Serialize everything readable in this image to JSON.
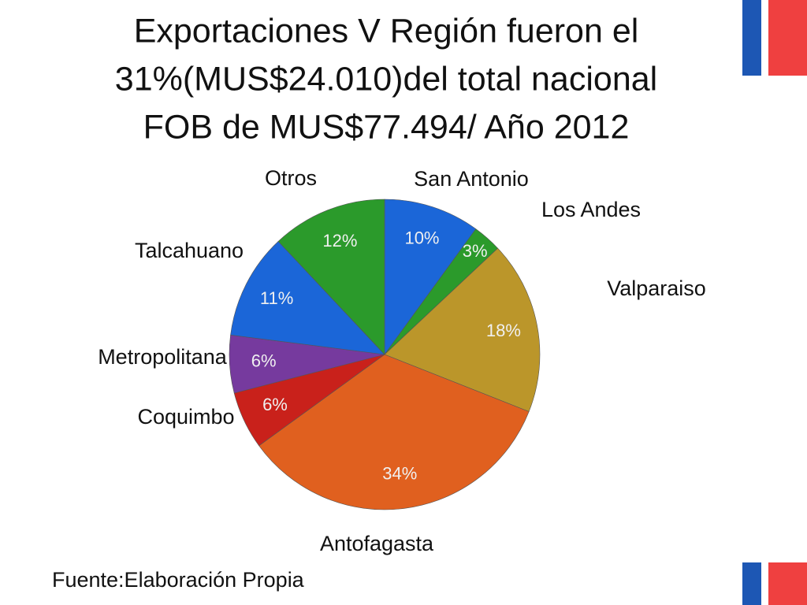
{
  "chart_data": {
    "type": "pie",
    "title": [
      "Exportaciones V Región fueron el",
      "31%(MUS$24.010)del total nacional",
      "FOB de MUS$77.494/ Año 2012"
    ],
    "categories": [
      "San Antonio",
      "Los Andes",
      "Valparaiso",
      "Antofagasta",
      "Coquimbo",
      "Metropolitana",
      "Talcahuano",
      "Otros"
    ],
    "values": [
      10,
      3,
      18,
      34,
      6,
      6,
      11,
      12
    ],
    "value_labels": [
      "10%",
      "3%",
      "18%",
      "34%",
      "6%",
      "6%",
      "11%",
      "12%"
    ],
    "colors": [
      "#1b66d8",
      "#2b9a2b",
      "#bb962a",
      "#e0601f",
      "#c9211b",
      "#763a9e",
      "#1b66d8",
      "#2b9a2b"
    ],
    "source": "Fuente:Elaboración Propia"
  }
}
